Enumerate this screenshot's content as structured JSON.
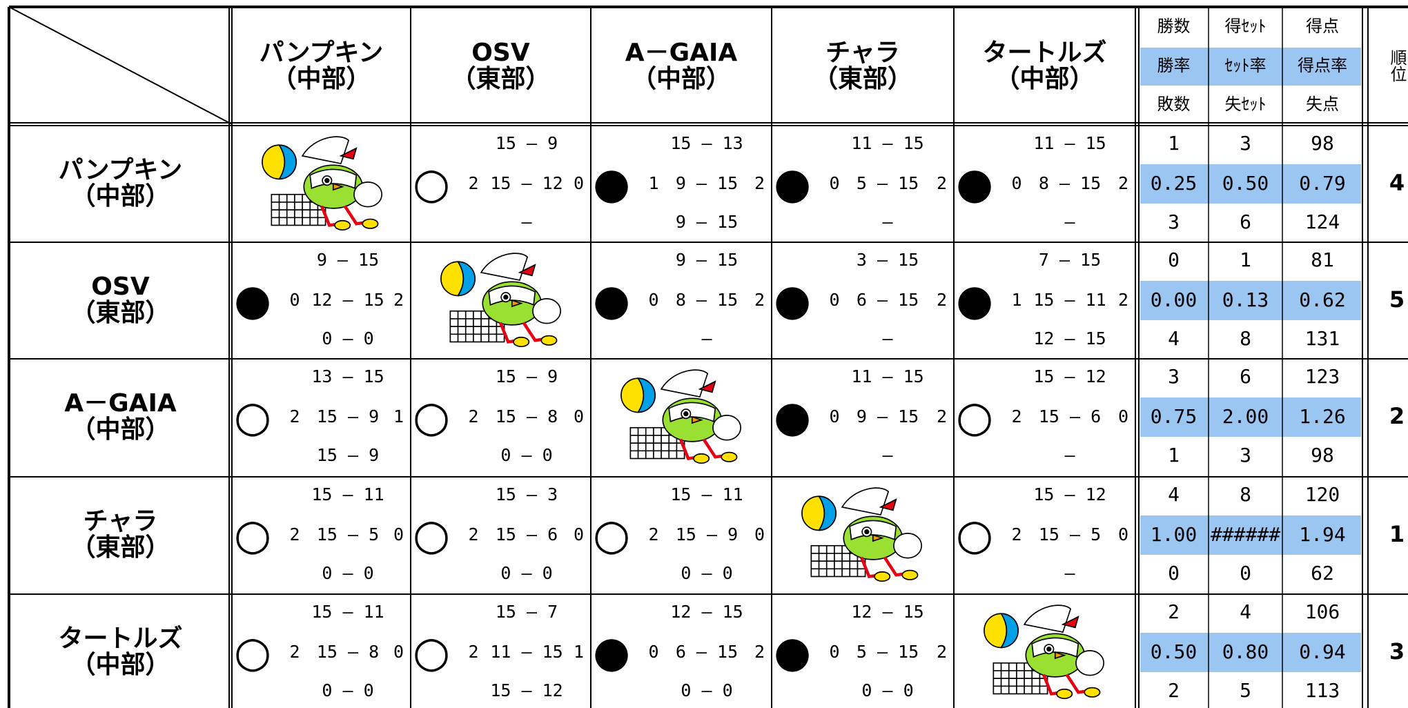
{
  "header": {
    "stats_labels": [
      [
        "勝数",
        "得ｾｯﾄ",
        "得点"
      ],
      [
        "勝率",
        "ｾｯﾄ率",
        "得点率"
      ],
      [
        "敗数",
        "失ｾｯﾄ",
        "失点"
      ]
    ],
    "rank_label": "順位"
  },
  "teams": [
    {
      "name": "パンプキン",
      "region": "（中部）"
    },
    {
      "name": "OSV",
      "region": "（東部）"
    },
    {
      "name": "A－GAIA",
      "region": "（中部）"
    },
    {
      "name": "チャラ",
      "region": "（東部）"
    },
    {
      "name": "タートルズ",
      "region": "（中部）"
    }
  ],
  "rows": [
    {
      "results": [
        null,
        {
          "mark": "○",
          "won": "2",
          "lost": "0",
          "sets": [
            "15 — 9",
            "15 — 12",
            "—"
          ]
        },
        {
          "mark": "●",
          "won": "1",
          "lost": "2",
          "sets": [
            "15 — 13",
            "9 — 15",
            "9 — 15"
          ]
        },
        {
          "mark": "●",
          "won": "0",
          "lost": "2",
          "sets": [
            "11 — 15",
            "5 — 15",
            "—"
          ]
        },
        {
          "mark": "●",
          "won": "0",
          "lost": "2",
          "sets": [
            "11 — 15",
            "8 — 15",
            "—"
          ]
        }
      ],
      "stats": [
        [
          "1",
          "3",
          "98"
        ],
        [
          "0.25",
          "0.50",
          "0.79"
        ],
        [
          "3",
          "6",
          "124"
        ]
      ],
      "rank": "4"
    },
    {
      "results": [
        {
          "mark": "●",
          "won": "0",
          "lost": "2",
          "sets": [
            "9 — 15",
            "12 — 15",
            "0 — 0"
          ]
        },
        null,
        {
          "mark": "●",
          "won": "0",
          "lost": "2",
          "sets": [
            "9 — 15",
            "8 — 15",
            "—"
          ]
        },
        {
          "mark": "●",
          "won": "0",
          "lost": "2",
          "sets": [
            "3 — 15",
            "6 — 15",
            "—"
          ]
        },
        {
          "mark": "●",
          "won": "1",
          "lost": "2",
          "sets": [
            "7 — 15",
            "15 — 11",
            "12 — 15"
          ]
        }
      ],
      "stats": [
        [
          "0",
          "1",
          "81"
        ],
        [
          "0.00",
          "0.13",
          "0.62"
        ],
        [
          "4",
          "8",
          "131"
        ]
      ],
      "rank": "5"
    },
    {
      "results": [
        {
          "mark": "○",
          "won": "2",
          "lost": "1",
          "sets": [
            "13 — 15",
            "15 — 9",
            "15 — 9"
          ]
        },
        {
          "mark": "○",
          "won": "2",
          "lost": "0",
          "sets": [
            "15 — 9",
            "15 — 8",
            "0 — 0"
          ]
        },
        null,
        {
          "mark": "●",
          "won": "0",
          "lost": "2",
          "sets": [
            "11 — 15",
            "9 — 15",
            "—"
          ]
        },
        {
          "mark": "○",
          "won": "2",
          "lost": "0",
          "sets": [
            "15 — 12",
            "15 — 6",
            "—"
          ]
        }
      ],
      "stats": [
        [
          "3",
          "6",
          "123"
        ],
        [
          "0.75",
          "2.00",
          "1.26"
        ],
        [
          "1",
          "3",
          "98"
        ]
      ],
      "rank": "2"
    },
    {
      "results": [
        {
          "mark": "○",
          "won": "2",
          "lost": "0",
          "sets": [
            "15 — 11",
            "15 — 5",
            "0 — 0"
          ]
        },
        {
          "mark": "○",
          "won": "2",
          "lost": "0",
          "sets": [
            "15 — 3",
            "15 — 6",
            "0 — 0"
          ]
        },
        {
          "mark": "○",
          "won": "2",
          "lost": "0",
          "sets": [
            "15 — 11",
            "15 — 9",
            "0 — 0"
          ]
        },
        null,
        {
          "mark": "○",
          "won": "2",
          "lost": "0",
          "sets": [
            "15 — 12",
            "15 — 5",
            "—"
          ]
        }
      ],
      "stats": [
        [
          "4",
          "8",
          "120"
        ],
        [
          "1.00",
          "######",
          "1.94"
        ],
        [
          "0",
          "0",
          "62"
        ]
      ],
      "rank": "1"
    },
    {
      "results": [
        {
          "mark": "○",
          "won": "2",
          "lost": "0",
          "sets": [
            "15 — 11",
            "15 — 8",
            "0 — 0"
          ]
        },
        {
          "mark": "○",
          "won": "2",
          "lost": "1",
          "sets": [
            "15 — 7",
            "11 — 15",
            "15 — 12"
          ]
        },
        {
          "mark": "●",
          "won": "0",
          "lost": "2",
          "sets": [
            "12 — 15",
            "6 — 15",
            "0 — 0"
          ]
        },
        {
          "mark": "●",
          "won": "0",
          "lost": "2",
          "sets": [
            "12 — 15",
            "5 — 15",
            "0 — 0"
          ]
        },
        null
      ],
      "stats": [
        [
          "2",
          "4",
          "106"
        ],
        [
          "0.50",
          "0.80",
          "0.94"
        ],
        [
          "2",
          "5",
          "113"
        ]
      ],
      "rank": "3"
    }
  ]
}
